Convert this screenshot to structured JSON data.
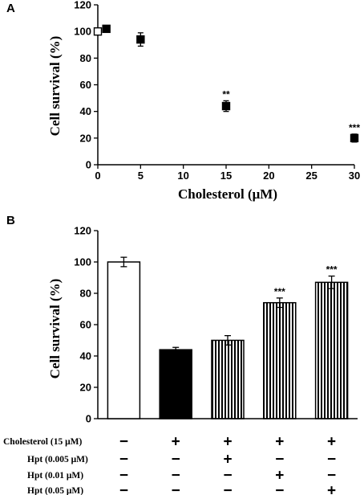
{
  "chart_data": [
    {
      "panel": "A",
      "type": "scatter",
      "ylabel": "Cell survival (%)",
      "xlabel": "Cholesterol (μM)",
      "xlim": [
        0,
        30
      ],
      "ylim": [
        0,
        120
      ],
      "xticks": [
        0,
        5,
        10,
        15,
        20,
        25,
        30
      ],
      "yticks": [
        0,
        20,
        40,
        60,
        80,
        100,
        120
      ],
      "points": [
        {
          "x": 0,
          "y": 100,
          "err": 2,
          "marker": "open",
          "sig": ""
        },
        {
          "x": 1,
          "y": 102,
          "err": 2,
          "marker": "filled",
          "sig": ""
        },
        {
          "x": 5,
          "y": 94,
          "err": 5,
          "marker": "filled",
          "sig": ""
        },
        {
          "x": 15,
          "y": 44,
          "err": 4,
          "marker": "filled",
          "sig": "**"
        },
        {
          "x": 30,
          "y": 20,
          "err": 3,
          "marker": "filled",
          "sig": "***"
        }
      ]
    },
    {
      "panel": "B",
      "type": "bar",
      "ylabel": "Cell survival (%)",
      "ylim": [
        0,
        120
      ],
      "yticks": [
        0,
        20,
        40,
        60,
        80,
        100,
        120
      ],
      "bars": [
        {
          "value": 100,
          "err": 3,
          "fill": "white",
          "sig": ""
        },
        {
          "value": 44,
          "err": 1.5,
          "fill": "black",
          "sig": ""
        },
        {
          "value": 50,
          "err": 3,
          "fill": "striped",
          "sig": ""
        },
        {
          "value": 74,
          "err": 3,
          "fill": "striped",
          "sig": "***"
        },
        {
          "value": 87,
          "err": 4,
          "fill": "striped",
          "sig": "***"
        }
      ],
      "treatments": [
        {
          "label": "Cholesterol (15 μM)",
          "signs": [
            "−",
            "+",
            "+",
            "+",
            "+"
          ]
        },
        {
          "label": "Hpt (0.005 μM)",
          "signs": [
            "−",
            "−",
            "+",
            "−",
            "−"
          ]
        },
        {
          "label": "Hpt (0.01 μM)",
          "signs": [
            "−",
            "−",
            "−",
            "+",
            "−"
          ]
        },
        {
          "label": "Hpt (0.05 μM)",
          "signs": [
            "−",
            "−",
            "−",
            "−",
            "+"
          ]
        }
      ]
    }
  ],
  "colors": {
    "ink": "#000000",
    "background": "#ffffff"
  }
}
